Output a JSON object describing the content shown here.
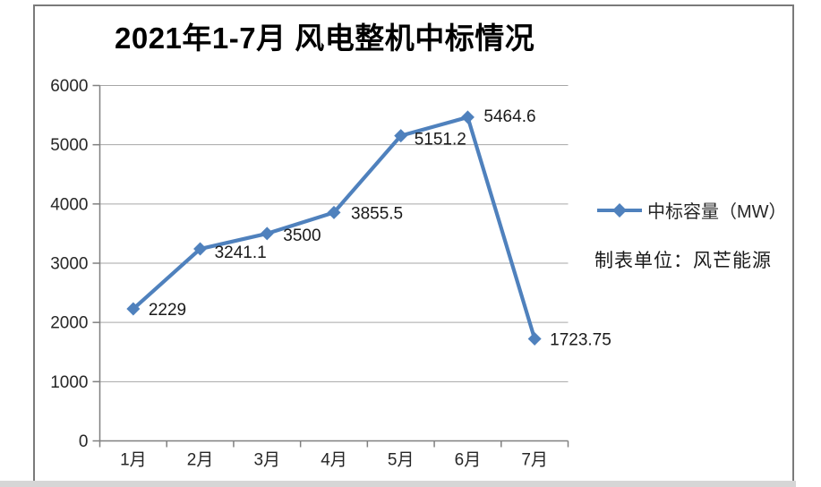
{
  "window": {
    "frame_border_color": "#7a7a7a",
    "bottom_strip_color": "#d6d6d6",
    "background_color": "#ffffff"
  },
  "chart_data": {
    "type": "line",
    "title": "2021年1-7月 风电整机中标情况",
    "categories": [
      "1月",
      "2月",
      "3月",
      "4月",
      "5月",
      "6月",
      "7月"
    ],
    "series": [
      {
        "name": "中标容量（MW）",
        "values": [
          2229,
          3241.1,
          3500,
          3855.5,
          5151.2,
          5464.6,
          1723.75
        ]
      }
    ],
    "point_labels": [
      "2229",
      "3241.1",
      "3500",
      "3855.5",
      "5151.2",
      "5464.6",
      "1723.75"
    ],
    "xlabel": "",
    "ylabel": "",
    "ylim": [
      0,
      6000
    ],
    "ytick_interval": 1000,
    "yticks": [
      "0",
      "1000",
      "2000",
      "3000",
      "4000",
      "5000",
      "6000"
    ],
    "grid": "horizontal",
    "legend_position": "right",
    "legend_label": "中标容量（MW）",
    "note": "制表单位：风芒能源",
    "marker": "diamond",
    "colors": {
      "line": "#4f81bd",
      "grid": "#a6a6a6",
      "axis": "#808080",
      "tick_label": "#262626",
      "data_label": "#1a1a1a",
      "title": "#000000"
    }
  }
}
